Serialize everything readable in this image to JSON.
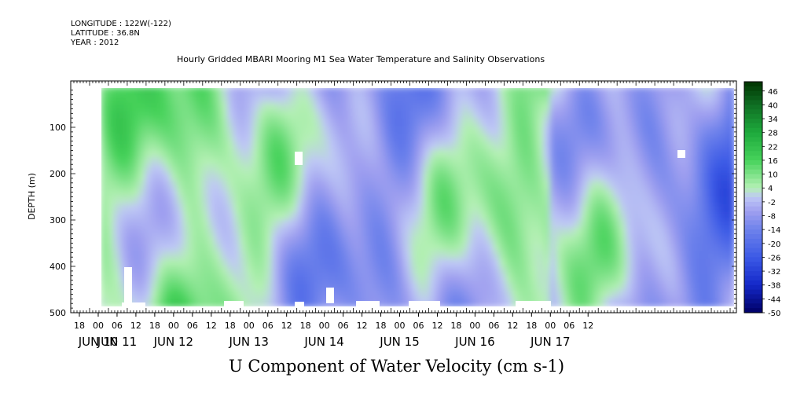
{
  "header": {
    "longitude": "LONGITUDE : 122W(-122)",
    "latitude": "LATITUDE : 36.8N",
    "year": "YEAR : 2012"
  },
  "title": "Hourly Gridded MBARI Mooring M1 Sea Water Temperature and Salinity Observations",
  "chart_data": {
    "type": "heatmap",
    "title": "Hourly Gridded MBARI Mooring M1 Sea Water Temperature and Salinity Observations",
    "xlabel": "U Component of Water Velocity (cm s-1)",
    "ylabel": "DEPTH (m)",
    "ylim": [
      500,
      0
    ],
    "y_ticks": [
      100,
      200,
      300,
      400,
      500
    ],
    "y_tick_labels": [
      "100",
      "200",
      "300",
      "400",
      "500"
    ],
    "x_hour_ticks": [
      "18",
      "00",
      "06",
      "12",
      "18",
      "00",
      "06",
      "12",
      "18",
      "00",
      "06",
      "12",
      "18",
      "00",
      "06",
      "12",
      "18",
      "00",
      "06",
      "12",
      "18",
      "00",
      "06",
      "12",
      "18",
      "00",
      "06",
      "12"
    ],
    "x_day_labels": [
      {
        "label": "JUN 10",
        "hour": 0
      },
      {
        "label": "JUN 11",
        "hour": 6
      },
      {
        "label": "JUN 12",
        "hour": 0
      },
      {
        "label": "JUN 13",
        "hour": 0
      },
      {
        "label": "JUN 14",
        "hour": 0
      },
      {
        "label": "JUN 15",
        "hour": 0
      },
      {
        "label": "JUN 16",
        "hour": 0
      },
      {
        "label": "JUN 17",
        "hour": 0
      }
    ],
    "colorbar": {
      "labels": [
        "46",
        "40",
        "34",
        "28",
        "22",
        "16",
        "10",
        "4",
        "-2",
        "-8",
        "-14",
        "-20",
        "-26",
        "-32",
        "-38",
        "-44",
        "-50"
      ],
      "range": [
        -50,
        50
      ],
      "negative_color_dark": "#000066",
      "negative_color_light": "#a6a6ee",
      "positive_color_light": "#b8f0b8",
      "positive_color_dark": "#003300"
    },
    "data_description_columns_hours": 198,
    "depth_range": [
      20,
      485
    ]
  },
  "colors": {
    "green": "#22c43a",
    "light_green": "#9eeea0",
    "periwinkle": "#a8a8f0",
    "blue": "#6a78e4"
  }
}
